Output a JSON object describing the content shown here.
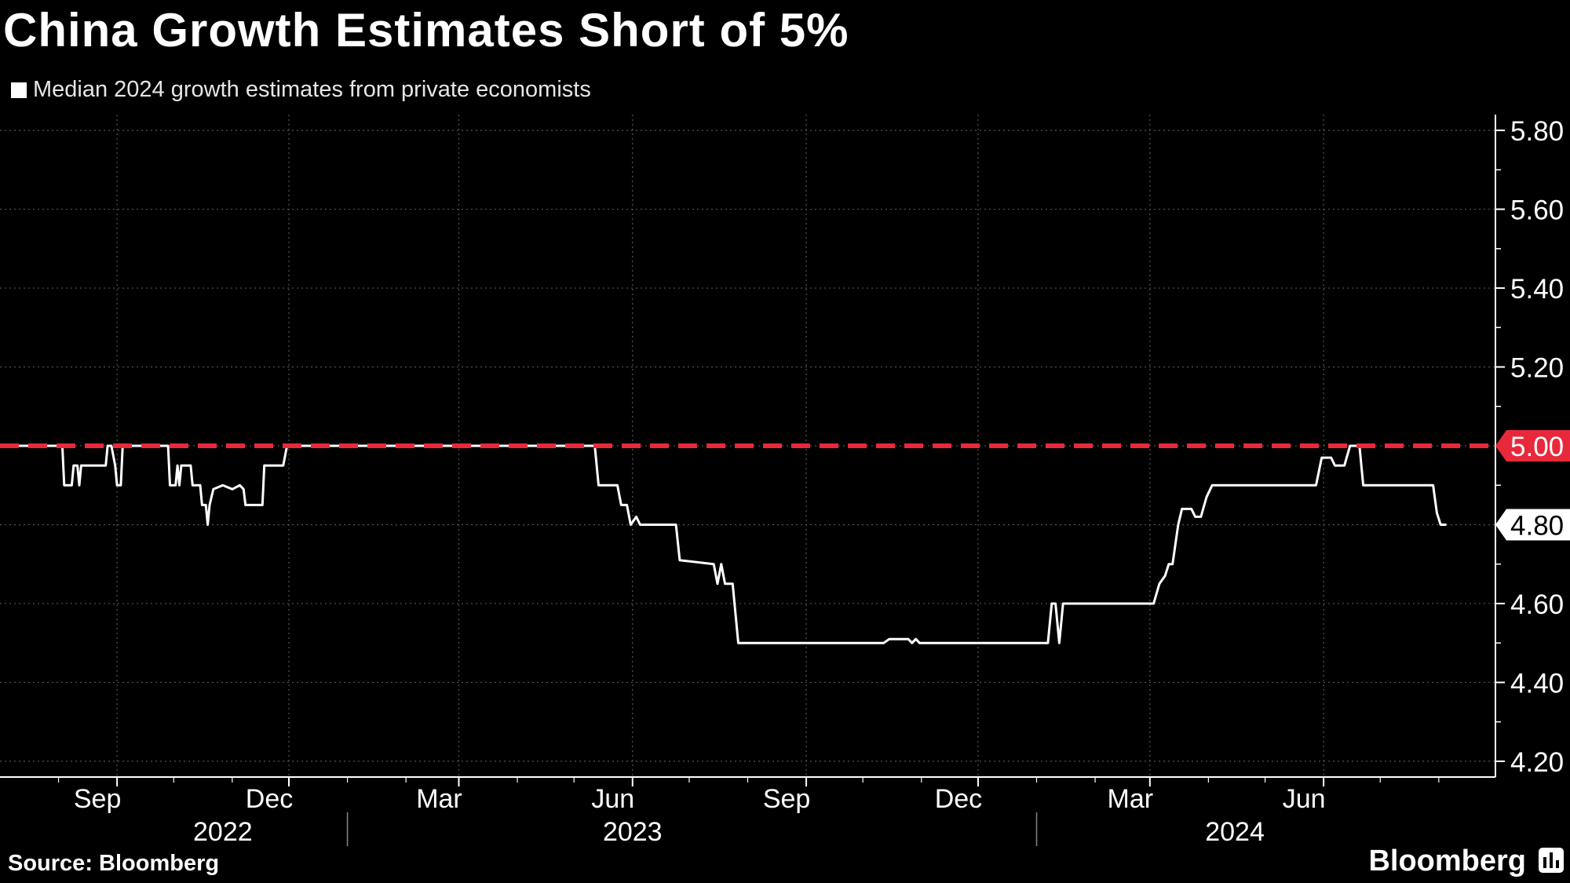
{
  "title": "China Growth Estimates Short of 5%",
  "source": "Source: Bloomberg",
  "brand": "Bloomberg",
  "brand_icon": "bloomberg-terminal-icon",
  "colors": {
    "background": "#000000",
    "series": "#ffffff",
    "target": "#e8293b",
    "grid": "#555555"
  },
  "chart_data": {
    "type": "line",
    "legend": "Median 2024 growth estimates from private economists",
    "legend_position": "top-left",
    "ylim": [
      4.16,
      5.84
    ],
    "y_ticks": [
      "5.80",
      "5.60",
      "5.40",
      "5.20",
      "5.00",
      "4.80",
      "4.60",
      "4.40",
      "4.20"
    ],
    "xlim": [
      "2022-07-01",
      "2024-08-31"
    ],
    "x_ticks": [
      {
        "date": "2022-09-01",
        "label": "Sep"
      },
      {
        "date": "2022-12-01",
        "label": "Dec"
      },
      {
        "date": "2023-03-01",
        "label": "Mar"
      },
      {
        "date": "2023-06-01",
        "label": "Jun"
      },
      {
        "date": "2023-09-01",
        "label": "Sep"
      },
      {
        "date": "2023-12-01",
        "label": "Dec"
      },
      {
        "date": "2024-03-01",
        "label": "Mar"
      },
      {
        "date": "2024-06-01",
        "label": "Jun"
      }
    ],
    "year_labels": [
      {
        "date": "2022-10-27",
        "label": "2022"
      },
      {
        "date": "2023-06-01",
        "label": "2023"
      },
      {
        "date": "2024-04-15",
        "label": "2024"
      }
    ],
    "year_dividers": [
      "2023-01-01",
      "2024-01-01"
    ],
    "grid": true,
    "reference_line": {
      "value": 5.0,
      "label": "5.00",
      "style": "dashed"
    },
    "last_value_label": "4.80",
    "series": [
      {
        "name": "Median 2024 growth estimates from private economists",
        "points": [
          [
            "2022-07-01",
            5.0
          ],
          [
            "2022-08-03",
            5.0
          ],
          [
            "2022-08-04",
            4.9
          ],
          [
            "2022-08-08",
            4.9
          ],
          [
            "2022-08-09",
            4.95
          ],
          [
            "2022-08-11",
            4.95
          ],
          [
            "2022-08-12",
            4.9
          ],
          [
            "2022-08-13",
            4.95
          ],
          [
            "2022-08-26",
            4.95
          ],
          [
            "2022-08-27",
            5.0
          ],
          [
            "2022-08-29",
            5.0
          ],
          [
            "2022-08-31",
            4.95
          ],
          [
            "2022-09-01",
            4.9
          ],
          [
            "2022-09-03",
            4.9
          ],
          [
            "2022-09-04",
            5.0
          ],
          [
            "2022-09-28",
            5.0
          ],
          [
            "2022-09-29",
            4.9
          ],
          [
            "2022-10-02",
            4.9
          ],
          [
            "2022-10-03",
            4.95
          ],
          [
            "2022-10-04",
            4.9
          ],
          [
            "2022-10-05",
            4.95
          ],
          [
            "2022-10-10",
            4.95
          ],
          [
            "2022-10-11",
            4.9
          ],
          [
            "2022-10-15",
            4.9
          ],
          [
            "2022-10-16",
            4.85
          ],
          [
            "2022-10-18",
            4.85
          ],
          [
            "2022-10-19",
            4.8
          ],
          [
            "2022-10-20",
            4.85
          ],
          [
            "2022-10-22",
            4.89
          ],
          [
            "2022-10-27",
            4.9
          ],
          [
            "2022-11-01",
            4.89
          ],
          [
            "2022-11-05",
            4.9
          ],
          [
            "2022-11-07",
            4.89
          ],
          [
            "2022-11-08",
            4.85
          ],
          [
            "2022-11-17",
            4.85
          ],
          [
            "2022-11-18",
            4.95
          ],
          [
            "2022-11-28",
            4.95
          ],
          [
            "2022-11-30",
            5.0
          ],
          [
            "2023-05-12",
            5.0
          ],
          [
            "2023-05-14",
            4.9
          ],
          [
            "2023-05-24",
            4.9
          ],
          [
            "2023-05-26",
            4.85
          ],
          [
            "2023-05-29",
            4.85
          ],
          [
            "2023-05-31",
            4.8
          ],
          [
            "2023-06-03",
            4.82
          ],
          [
            "2023-06-05",
            4.8
          ],
          [
            "2023-06-24",
            4.8
          ],
          [
            "2023-06-26",
            4.71
          ],
          [
            "2023-07-14",
            4.7
          ],
          [
            "2023-07-16",
            4.65
          ],
          [
            "2023-07-18",
            4.7
          ],
          [
            "2023-07-20",
            4.65
          ],
          [
            "2023-07-24",
            4.65
          ],
          [
            "2023-07-27",
            4.5
          ],
          [
            "2023-10-12",
            4.5
          ],
          [
            "2023-10-15",
            4.51
          ],
          [
            "2023-10-25",
            4.51
          ],
          [
            "2023-10-27",
            4.5
          ],
          [
            "2023-10-29",
            4.51
          ],
          [
            "2023-10-31",
            4.5
          ],
          [
            "2024-01-07",
            4.5
          ],
          [
            "2024-01-09",
            4.6
          ],
          [
            "2024-01-11",
            4.6
          ],
          [
            "2024-01-13",
            4.5
          ],
          [
            "2024-01-15",
            4.6
          ],
          [
            "2024-03-03",
            4.6
          ],
          [
            "2024-03-06",
            4.65
          ],
          [
            "2024-03-09",
            4.67
          ],
          [
            "2024-03-11",
            4.7
          ],
          [
            "2024-03-13",
            4.7
          ],
          [
            "2024-03-16",
            4.8
          ],
          [
            "2024-03-18",
            4.84
          ],
          [
            "2024-03-23",
            4.84
          ],
          [
            "2024-03-25",
            4.82
          ],
          [
            "2024-03-28",
            4.82
          ],
          [
            "2024-03-31",
            4.87
          ],
          [
            "2024-04-03",
            4.9
          ],
          [
            "2024-05-28",
            4.9
          ],
          [
            "2024-05-31",
            4.97
          ],
          [
            "2024-06-05",
            4.97
          ],
          [
            "2024-06-07",
            4.95
          ],
          [
            "2024-06-12",
            4.95
          ],
          [
            "2024-06-15",
            5.0
          ],
          [
            "2024-06-20",
            5.0
          ],
          [
            "2024-06-22",
            4.9
          ],
          [
            "2024-07-29",
            4.9
          ],
          [
            "2024-07-31",
            4.83
          ],
          [
            "2024-08-02",
            4.8
          ],
          [
            "2024-08-05",
            4.8
          ]
        ]
      }
    ]
  }
}
